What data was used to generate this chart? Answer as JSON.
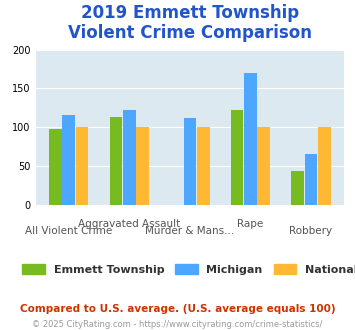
{
  "title": "2019 Emmett Township\nViolent Crime Comparison",
  "categories": [
    "All Violent Crime",
    "Aggravated Assault",
    "Murder & Mans...",
    "Rape",
    "Robbery"
  ],
  "series": {
    "Emmett Township": [
      98,
      113,
      0,
      122,
      43
    ],
    "Michigan": [
      116,
      122,
      112,
      170,
      65
    ],
    "National": [
      100,
      100,
      100,
      100,
      100
    ]
  },
  "colors": {
    "Emmett Township": "#76bc21",
    "Michigan": "#4da6ff",
    "National": "#ffb833"
  },
  "ylim": [
    0,
    200
  ],
  "yticks": [
    0,
    50,
    100,
    150,
    200
  ],
  "title_color": "#2255cc",
  "title_fontsize": 12,
  "axis_label_fontsize": 7.5,
  "legend_fontsize": 8,
  "bg_color": "#dce9f0",
  "note_text": "Compared to U.S. average. (U.S. average equals 100)",
  "note_color": "#cc3300",
  "note_fontsize": 7.5,
  "footer_text": "© 2025 CityRating.com - https://www.cityrating.com/crime-statistics/",
  "footer_color": "#999999",
  "footer_fontsize": 6
}
